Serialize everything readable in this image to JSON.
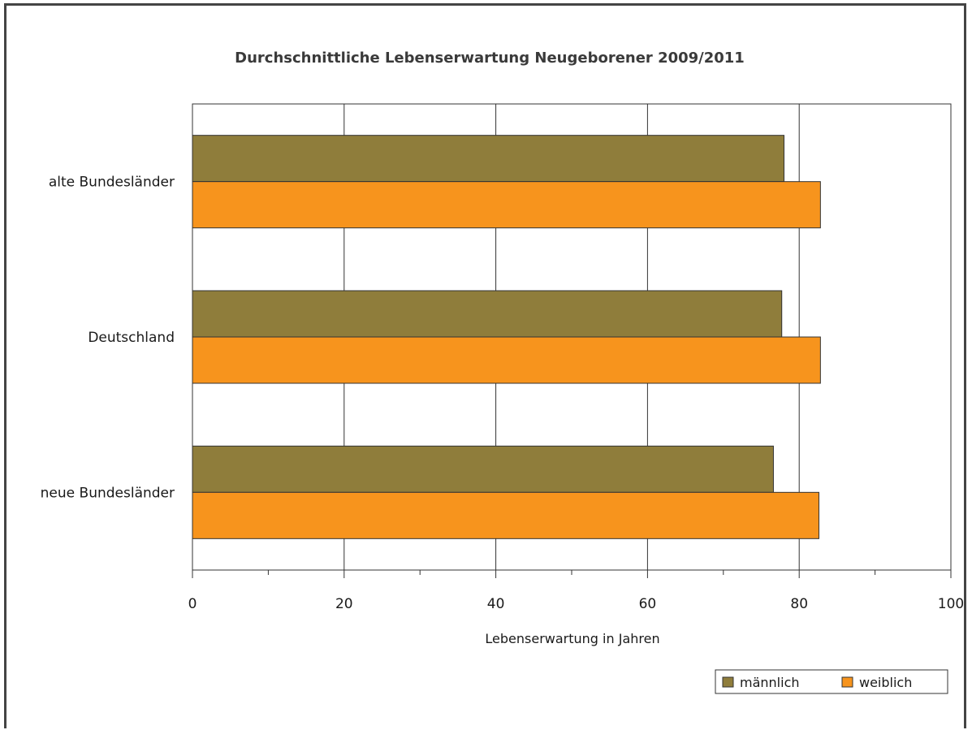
{
  "chart_data": {
    "type": "bar",
    "orientation": "horizontal",
    "title": "Durchschnittliche Lebenserwartung Neugeborener 2009/2011",
    "xlabel": "Lebenserwartung in Jahren",
    "ylabel": "",
    "categories": [
      "alte Bundesländer",
      "Deutschland",
      "neue Bundesländer"
    ],
    "series": [
      {
        "name": "männlich",
        "values": [
          78.0,
          77.7,
          76.6
        ],
        "color": "#8f7d3b"
      },
      {
        "name": "weiblich",
        "values": [
          82.8,
          82.8,
          82.6
        ],
        "color": "#f7941d"
      }
    ],
    "xlim": [
      0,
      100
    ],
    "xticks": [
      "0",
      "20",
      "40",
      "60",
      "80",
      "100"
    ],
    "grid": true,
    "legend_position": "bottom-right"
  }
}
